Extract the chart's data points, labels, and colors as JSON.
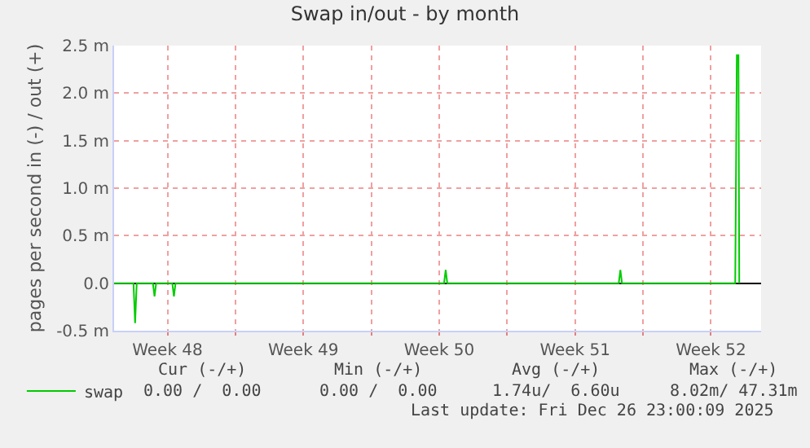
{
  "chart_data": {
    "type": "line",
    "title": "Swap in/out - by month",
    "ylabel": "pages per second in (-) / out (+)",
    "x": [
      "2025-11-24T18:00",
      "2025-11-25T18:00",
      "2025-11-25T20:00",
      "2025-11-25T22:00",
      "2025-11-26T18:00",
      "2025-11-26T20:00",
      "2025-11-26T22:00",
      "2025-11-27T18:00",
      "2025-11-27T20:00",
      "2025-11-27T22:00",
      "2025-12-11T18:00",
      "2025-12-11T20:00",
      "2025-12-11T22:00",
      "2025-12-20T18:00",
      "2025-12-20T20:00",
      "2025-12-20T22:00",
      "2025-12-26T18:00",
      "2025-12-26T20:00",
      "2025-12-26T22:00",
      "2025-12-26T23:00"
    ],
    "series": [
      {
        "name": "swap",
        "color": "#00cc00",
        "values": [
          0,
          0,
          -0.42,
          0,
          0,
          -0.14,
          0,
          0,
          -0.14,
          0,
          0,
          0.14,
          0,
          0,
          0.14,
          0,
          0,
          2.4,
          2.4,
          0
        ]
      }
    ],
    "xlim": [
      "2025-11-24T18:00",
      "2025-12-28T02:00"
    ],
    "xticks": [
      {
        "value": "2025-11-27T12:00",
        "label": "Week 48"
      },
      {
        "value": "2025-12-01",
        "label": null
      },
      {
        "value": "2025-12-04T12:00",
        "label": "Week 49"
      },
      {
        "value": "2025-12-08",
        "label": null
      },
      {
        "value": "2025-12-11T12:00",
        "label": "Week 50"
      },
      {
        "value": "2025-12-15",
        "label": null
      },
      {
        "value": "2025-12-18T12:00",
        "label": "Week 51"
      },
      {
        "value": "2025-12-22",
        "label": null
      },
      {
        "value": "2025-12-25T12:00",
        "label": "Week 52"
      }
    ],
    "ylim": [
      -0.5,
      2.5
    ],
    "yticks": [
      {
        "value": -0.5,
        "label": "-0.5 m"
      },
      {
        "value": 0,
        "label": "0.0"
      },
      {
        "value": 0.5,
        "label": "0.5 m"
      },
      {
        "value": 1,
        "label": "1.0 m"
      },
      {
        "value": 1.5,
        "label": "1.5 m"
      },
      {
        "value": 2,
        "label": "2.0 m"
      },
      {
        "value": 2.5,
        "label": "2.5 m"
      }
    ],
    "grid": true,
    "legend": "bottom left",
    "marker": "none",
    "line_style": "solid",
    "annotations": [
      "Cur (-/+)",
      "Min (-/+)",
      "Avg (-/+)",
      "Max (-/+)",
      "0.00 /  0.00",
      "0.00 /  0.00",
      "1.74u/  6.60u",
      "8.02m/ 47.31m",
      "Last update: Fri Dec 26 23:00:09 2025"
    ]
  }
}
